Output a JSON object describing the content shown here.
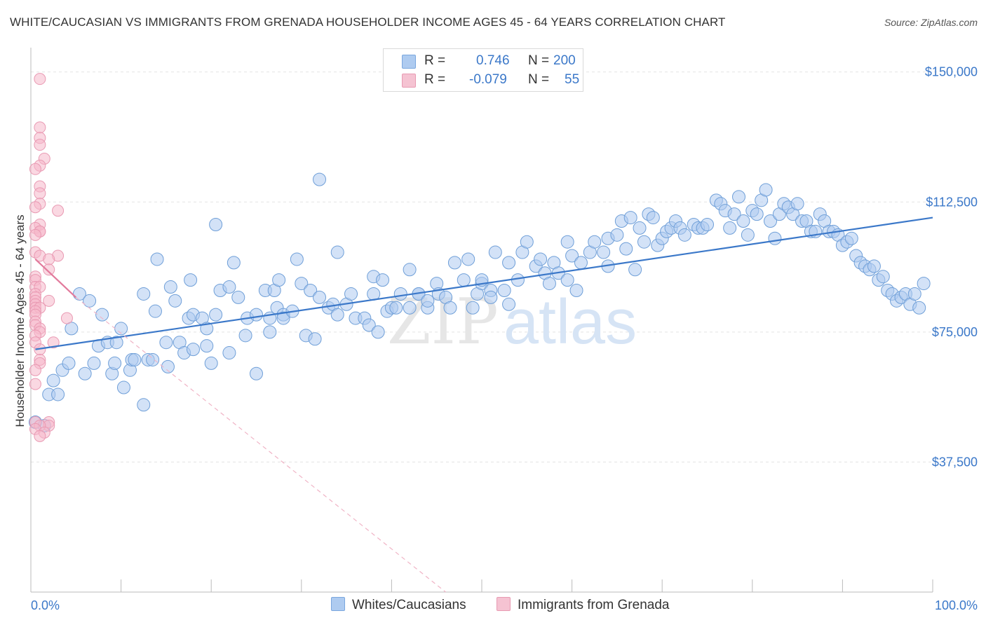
{
  "title": "WHITE/CAUCASIAN VS IMMIGRANTS FROM GRENADA HOUSEHOLDER INCOME AGES 45 - 64 YEARS CORRELATION CHART",
  "source": "Source: ZipAtlas.com",
  "watermark": {
    "zip": "ZIP",
    "atlas": "atlas"
  },
  "legend": {
    "r_label": "R =",
    "n_label": "N =",
    "rows": [
      {
        "r": "0.746",
        "n": "200"
      },
      {
        "r": "-0.079",
        "n": "55"
      }
    ]
  },
  "bottom_legend": [
    "Whites/Caucasians",
    "Immigrants from Grenada"
  ],
  "colors": {
    "blue": "#3b78c9",
    "blue_fill": "#aecbf0",
    "pink": "#e27a9c",
    "pink_fill": "#f5b8cb"
  },
  "chart_data": {
    "type": "scatter",
    "xlabel": "",
    "ylabel": "Householder Income Ages 45 - 64 years",
    "xlim": [
      0,
      100
    ],
    "ylim": [
      0,
      155000
    ],
    "x_tick_labels": [
      "0.0%",
      "100.0%"
    ],
    "y_ticks": [
      37500,
      75000,
      112500,
      150000
    ],
    "y_tick_labels": [
      "$37,500",
      "$75,000",
      "$112,500",
      "$150,000"
    ],
    "grid": true,
    "series": [
      {
        "name": "Whites/Caucasians",
        "trend": {
          "x": [
            0.5,
            100
          ],
          "y": [
            70000,
            108000
          ]
        },
        "points": [
          [
            0.5,
            49000
          ],
          [
            1.5,
            48000
          ],
          [
            2.5,
            61000
          ],
          [
            2,
            57000
          ],
          [
            3,
            57000
          ],
          [
            3.5,
            64000
          ],
          [
            4.2,
            66000
          ],
          [
            4.5,
            76000
          ],
          [
            5.4,
            86000
          ],
          [
            6,
            63000
          ],
          [
            6.5,
            84000
          ],
          [
            7,
            66000
          ],
          [
            7.5,
            71000
          ],
          [
            7.9,
            80000
          ],
          [
            8.5,
            72000
          ],
          [
            9,
            63000
          ],
          [
            9.5,
            72000
          ],
          [
            9.3,
            66000
          ],
          [
            10,
            76000
          ],
          [
            10.3,
            59000
          ],
          [
            11,
            64000
          ],
          [
            11.2,
            67000
          ],
          [
            11.5,
            67000
          ],
          [
            12.5,
            86000
          ],
          [
            12.5,
            54000
          ],
          [
            13,
            67000
          ],
          [
            13.5,
            67000
          ],
          [
            13.8,
            81000
          ],
          [
            14,
            96000
          ],
          [
            15,
            72000
          ],
          [
            15.2,
            65000
          ],
          [
            15.5,
            88000
          ],
          [
            16,
            84000
          ],
          [
            16.5,
            72000
          ],
          [
            17,
            69000
          ],
          [
            17.5,
            79000
          ],
          [
            17.7,
            90000
          ],
          [
            18,
            70000
          ],
          [
            18,
            80000
          ],
          [
            19,
            79000
          ],
          [
            19.5,
            76000
          ],
          [
            19.5,
            71000
          ],
          [
            20,
            66000
          ],
          [
            20.5,
            80000
          ],
          [
            20.5,
            106000
          ],
          [
            21,
            87000
          ],
          [
            22,
            69000
          ],
          [
            22,
            88000
          ],
          [
            22.5,
            95000
          ],
          [
            23,
            85000
          ],
          [
            23.8,
            74000
          ],
          [
            24,
            79000
          ],
          [
            25,
            80000
          ],
          [
            25,
            63000
          ],
          [
            26,
            87000
          ],
          [
            26.5,
            79000
          ],
          [
            26.5,
            75000
          ],
          [
            27,
            87000
          ],
          [
            27.3,
            82000
          ],
          [
            27.5,
            90000
          ],
          [
            28,
            80000
          ],
          [
            28,
            79000
          ],
          [
            29,
            81000
          ],
          [
            29.5,
            96000
          ],
          [
            30,
            89000
          ],
          [
            30.5,
            74000
          ],
          [
            31,
            87000
          ],
          [
            31.5,
            73000
          ],
          [
            32,
            85000
          ],
          [
            32,
            119000
          ],
          [
            33,
            82000
          ],
          [
            33.5,
            83000
          ],
          [
            34,
            98000
          ],
          [
            34,
            80000
          ],
          [
            35,
            83000
          ],
          [
            35.5,
            86000
          ],
          [
            36,
            79000
          ],
          [
            37,
            79000
          ],
          [
            37.5,
            77000
          ],
          [
            38,
            86000
          ],
          [
            38,
            91000
          ],
          [
            38.5,
            75000
          ],
          [
            39,
            90000
          ],
          [
            39.5,
            81000
          ],
          [
            40,
            82000
          ],
          [
            40.5,
            82000
          ],
          [
            41,
            86000
          ],
          [
            42,
            82000
          ],
          [
            42,
            93000
          ],
          [
            43,
            86000
          ],
          [
            43,
            86000
          ],
          [
            44,
            82000
          ],
          [
            44,
            84000
          ],
          [
            45,
            89000
          ],
          [
            45.2,
            86000
          ],
          [
            46,
            85000
          ],
          [
            46.5,
            82000
          ],
          [
            47,
            95000
          ],
          [
            48,
            90000
          ],
          [
            48.5,
            96000
          ],
          [
            49,
            82000
          ],
          [
            49.5,
            86000
          ],
          [
            50,
            89000
          ],
          [
            50,
            90000
          ],
          [
            51,
            87000
          ],
          [
            51,
            85000
          ],
          [
            51.5,
            98000
          ],
          [
            52.5,
            87000
          ],
          [
            53,
            95000
          ],
          [
            53,
            83000
          ],
          [
            54,
            90000
          ],
          [
            54.5,
            98000
          ],
          [
            55,
            101000
          ],
          [
            56,
            94000
          ],
          [
            56.5,
            96000
          ],
          [
            57,
            92000
          ],
          [
            57.5,
            89000
          ],
          [
            58,
            95000
          ],
          [
            58.5,
            92000
          ],
          [
            59.5,
            101000
          ],
          [
            59.5,
            90000
          ],
          [
            60,
            97000
          ],
          [
            60.5,
            87000
          ],
          [
            61,
            95000
          ],
          [
            62,
            98000
          ],
          [
            62.5,
            101000
          ],
          [
            63.5,
            98000
          ],
          [
            64,
            94000
          ],
          [
            64,
            102000
          ],
          [
            65,
            103000
          ],
          [
            65.5,
            107000
          ],
          [
            66,
            99000
          ],
          [
            66.5,
            108000
          ],
          [
            67,
            93000
          ],
          [
            67.5,
            105000
          ],
          [
            68,
            101000
          ],
          [
            68.5,
            109000
          ],
          [
            69,
            108000
          ],
          [
            69.5,
            100000
          ],
          [
            70,
            102000
          ],
          [
            70.5,
            104000
          ],
          [
            71,
            105000
          ],
          [
            71.5,
            107000
          ],
          [
            72,
            105000
          ],
          [
            72.5,
            103000
          ],
          [
            73.5,
            106000
          ],
          [
            74,
            105000
          ],
          [
            74.5,
            105000
          ],
          [
            75,
            106000
          ],
          [
            76,
            113000
          ],
          [
            76.5,
            112000
          ],
          [
            77,
            110000
          ],
          [
            77.5,
            105000
          ],
          [
            78,
            109000
          ],
          [
            78.5,
            114000
          ],
          [
            79,
            107000
          ],
          [
            79.5,
            103000
          ],
          [
            80,
            110000
          ],
          [
            80.5,
            109000
          ],
          [
            81,
            113000
          ],
          [
            81.5,
            116000
          ],
          [
            82,
            107000
          ],
          [
            82.5,
            102000
          ],
          [
            83,
            109000
          ],
          [
            83.5,
            112000
          ],
          [
            84,
            111000
          ],
          [
            84.5,
            109000
          ],
          [
            85,
            112000
          ],
          [
            85.5,
            107000
          ],
          [
            86,
            107000
          ],
          [
            86.5,
            104000
          ],
          [
            87,
            104000
          ],
          [
            87.5,
            109000
          ],
          [
            88,
            107000
          ],
          [
            88.5,
            104000
          ],
          [
            89,
            104000
          ],
          [
            89.5,
            103000
          ],
          [
            90,
            100000
          ],
          [
            90.5,
            101000
          ],
          [
            91,
            102000
          ],
          [
            91.5,
            97000
          ],
          [
            92,
            95000
          ],
          [
            92.5,
            94000
          ],
          [
            93,
            93000
          ],
          [
            93.5,
            94000
          ],
          [
            94,
            90000
          ],
          [
            94.5,
            91000
          ],
          [
            95,
            87000
          ],
          [
            95.5,
            86000
          ],
          [
            96,
            84000
          ],
          [
            96.5,
            85000
          ],
          [
            97,
            86000
          ],
          [
            97.5,
            83000
          ],
          [
            98,
            86000
          ],
          [
            98.5,
            82000
          ],
          [
            99,
            89000
          ]
        ]
      },
      {
        "name": "Immigrants from Grenada",
        "trend": {
          "x": [
            0.5,
            5
          ],
          "y": [
            96000,
            85000
          ]
        },
        "trend_ext": {
          "x": [
            5,
            46
          ],
          "y": [
            85000,
            0
          ]
        },
        "points": [
          [
            1,
            148000
          ],
          [
            1,
            134000
          ],
          [
            1,
            131000
          ],
          [
            1,
            129000
          ],
          [
            1.5,
            125000
          ],
          [
            1,
            123000
          ],
          [
            0.5,
            122000
          ],
          [
            1,
            117000
          ],
          [
            1,
            115000
          ],
          [
            1,
            112000
          ],
          [
            0.5,
            111000
          ],
          [
            3,
            110000
          ],
          [
            1,
            106000
          ],
          [
            0.5,
            105000
          ],
          [
            1,
            104000
          ],
          [
            1,
            104000
          ],
          [
            0.5,
            103000
          ],
          [
            0.5,
            98000
          ],
          [
            3,
            97000
          ],
          [
            1,
            97000
          ],
          [
            2,
            96000
          ],
          [
            2,
            93000
          ],
          [
            0.5,
            91000
          ],
          [
            0.5,
            90000
          ],
          [
            0.5,
            88000
          ],
          [
            1,
            88000
          ],
          [
            0.5,
            86000
          ],
          [
            0.5,
            85000
          ],
          [
            0.5,
            84000
          ],
          [
            2,
            84000
          ],
          [
            0.5,
            83000
          ],
          [
            0.5,
            82000
          ],
          [
            1,
            82000
          ],
          [
            0.5,
            81000
          ],
          [
            0.5,
            80000
          ],
          [
            4,
            79000
          ],
          [
            0.5,
            78000
          ],
          [
            0.5,
            77000
          ],
          [
            1,
            76000
          ],
          [
            1,
            75000
          ],
          [
            0.5,
            74000
          ],
          [
            0.5,
            72000
          ],
          [
            2.5,
            72000
          ],
          [
            1,
            70000
          ],
          [
            1,
            67000
          ],
          [
            1,
            66000
          ],
          [
            0.5,
            64000
          ],
          [
            0.5,
            60000
          ],
          [
            0.5,
            49000
          ],
          [
            2,
            49000
          ],
          [
            2,
            48000
          ],
          [
            1,
            48000
          ],
          [
            0.5,
            47000
          ],
          [
            1.5,
            46000
          ],
          [
            1,
            45000
          ]
        ]
      }
    ]
  }
}
